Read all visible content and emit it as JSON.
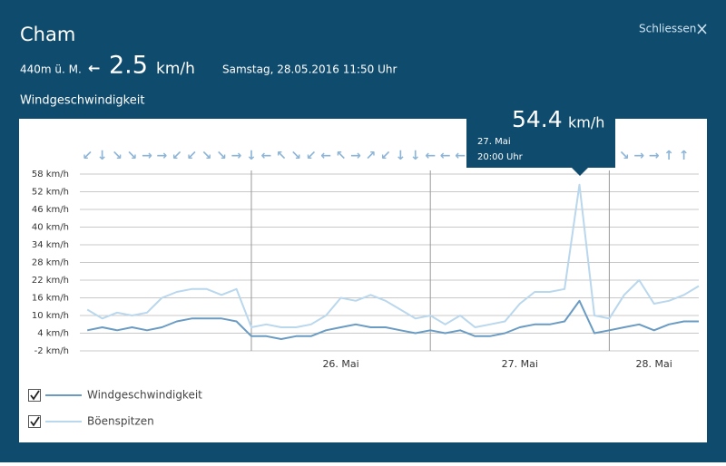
{
  "header": {
    "title": "Cham",
    "elevation": "440m ü. M.",
    "current_direction": "←",
    "current_speed": "2.5",
    "speed_unit": "km/h",
    "timestamp": "Samstag, 28.05.2016 11:50 Uhr",
    "section_title": "Windgeschwindigkeit",
    "close": "Schliessen"
  },
  "tooltip": {
    "value": "54.4",
    "unit": "km/h",
    "date": "27. Mai",
    "time": "20:00 Uhr"
  },
  "chart_data": {
    "type": "line",
    "x": [
      "2016-05-25T02:00",
      "2016-05-25T04:00",
      "2016-05-25T06:00",
      "2016-05-25T08:00",
      "2016-05-25T10:00",
      "2016-05-25T12:00",
      "2016-05-25T14:00",
      "2016-05-25T16:00",
      "2016-05-25T18:00",
      "2016-05-25T20:00",
      "2016-05-25T22:00",
      "2016-05-26T00:00",
      "2016-05-26T02:00",
      "2016-05-26T04:00",
      "2016-05-26T06:00",
      "2016-05-26T08:00",
      "2016-05-26T10:00",
      "2016-05-26T12:00",
      "2016-05-26T14:00",
      "2016-05-26T16:00",
      "2016-05-26T18:00",
      "2016-05-26T20:00",
      "2016-05-26T22:00",
      "2016-05-27T00:00",
      "2016-05-27T02:00",
      "2016-05-27T04:00",
      "2016-05-27T06:00",
      "2016-05-27T08:00",
      "2016-05-27T10:00",
      "2016-05-27T12:00",
      "2016-05-27T14:00",
      "2016-05-27T16:00",
      "2016-05-27T18:00",
      "2016-05-27T20:00",
      "2016-05-27T22:00",
      "2016-05-28T00:00",
      "2016-05-28T02:00",
      "2016-05-28T04:00",
      "2016-05-28T06:00",
      "2016-05-28T08:00",
      "2016-05-28T10:00",
      "2016-05-28T12:00"
    ],
    "series": [
      {
        "name": "Windgeschwindigkeit",
        "color": "#6a9bc3",
        "values": [
          5,
          6,
          5,
          6,
          5,
          6,
          8,
          9,
          9,
          9,
          8,
          3,
          3,
          2,
          3,
          3,
          5,
          6,
          7,
          6,
          6,
          5,
          4,
          5,
          4,
          5,
          3,
          3,
          4,
          6,
          7,
          7,
          8,
          15,
          4,
          5,
          6,
          7,
          5,
          7,
          8,
          8
        ]
      },
      {
        "name": "Böenspitzen",
        "color": "#b9d7ed",
        "values": [
          12,
          9,
          11,
          10,
          11,
          16,
          18,
          19,
          19,
          17,
          19,
          6,
          7,
          6,
          6,
          7,
          10,
          16,
          15,
          17,
          15,
          12,
          9,
          10,
          7,
          10,
          6,
          7,
          8,
          14,
          18,
          18,
          19,
          54.4,
          10,
          9,
          17,
          22,
          14,
          15,
          17,
          20
        ]
      }
    ],
    "wind_directions": [
      "↙",
      "↓",
      "↘",
      "↘",
      "→",
      "→",
      "↙",
      "↙",
      "↘",
      "↘",
      "→",
      "↓",
      "←",
      "↖",
      "↘",
      "↙",
      "←",
      "↖",
      "→",
      "↗",
      "↙",
      "↓",
      "↓",
      "←",
      "←",
      "←",
      null,
      null,
      null,
      null,
      null,
      null,
      null,
      null,
      null,
      null,
      "↘",
      "→",
      "→",
      "↑",
      "↑",
      null
    ],
    "xlim": [
      "2016-05-25T01:00",
      "2016-05-28T12:00"
    ],
    "xticks": [
      {
        "value": "2016-05-26T00:00",
        "label": "26. Mai"
      },
      {
        "value": "2016-05-27T00:00",
        "label": "27. Mai"
      },
      {
        "value": "2016-05-28T00:00",
        "label": "28. Mai"
      }
    ],
    "ylim": [
      -2,
      58
    ],
    "yticks": [
      {
        "value": -2,
        "label": "-2 km/h"
      },
      {
        "value": 4,
        "label": "4 km/h"
      },
      {
        "value": 10,
        "label": "10 km/h"
      },
      {
        "value": 16,
        "label": "16 km/h"
      },
      {
        "value": 22,
        "label": "22 km/h"
      },
      {
        "value": 28,
        "label": "28 km/h"
      },
      {
        "value": 34,
        "label": "34 km/h"
      },
      {
        "value": 40,
        "label": "40 km/h"
      },
      {
        "value": 46,
        "label": "46 km/h"
      },
      {
        "value": 52,
        "label": "52 km/h"
      },
      {
        "value": 58,
        "label": "58 km/h"
      }
    ],
    "grid": true
  }
}
